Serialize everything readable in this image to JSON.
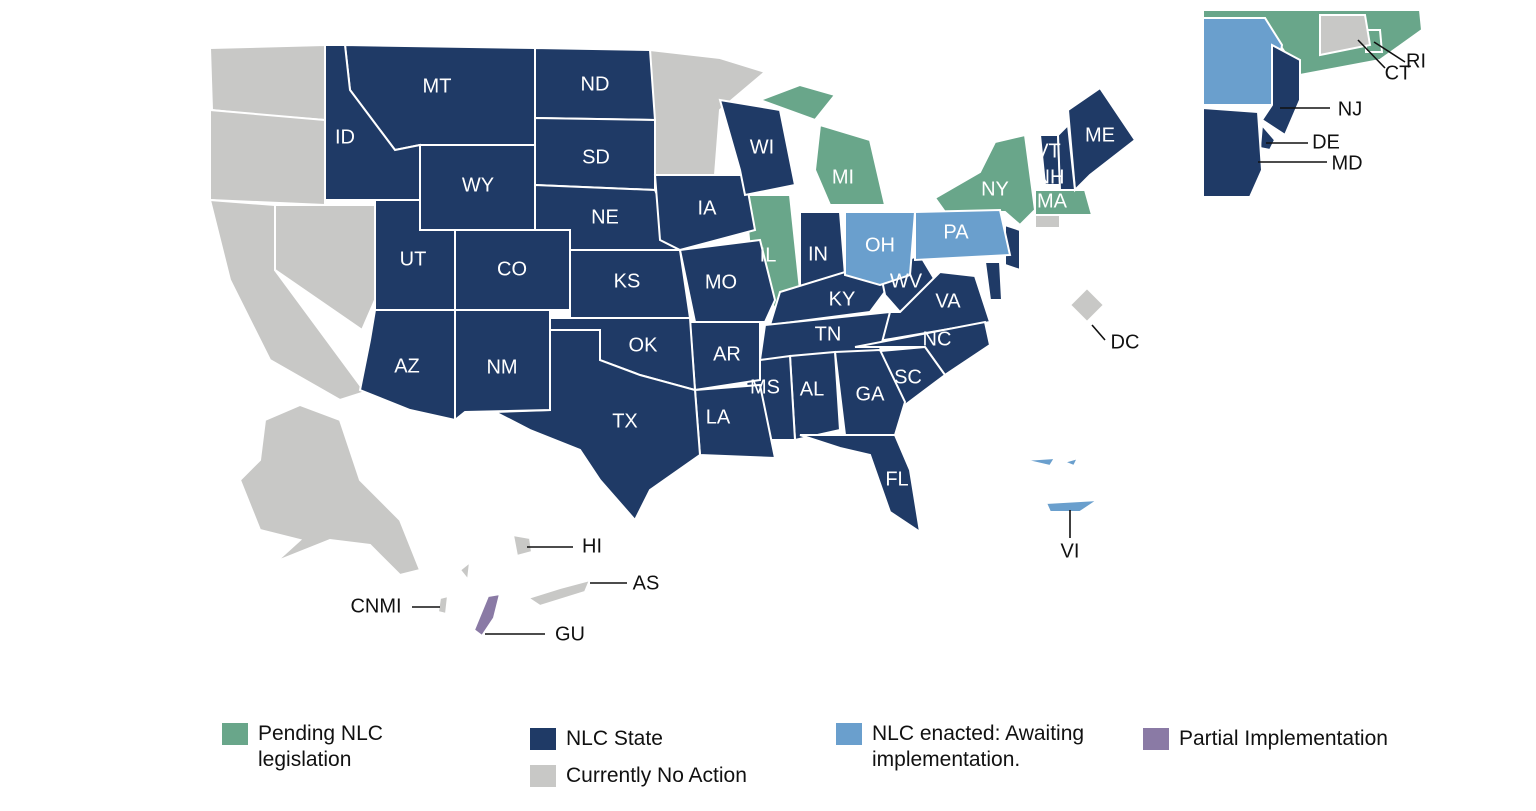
{
  "legend": [
    {
      "label": "Pending NLC legislation",
      "color": "#69a68a",
      "regions": [
        "IL",
        "MI",
        "NY",
        "MA",
        "RI"
      ]
    },
    {
      "label": "NLC State",
      "color": "#1f3a66",
      "regions": [
        "MT",
        "ND",
        "ID",
        "SD",
        "WY",
        "NE",
        "UT",
        "CO",
        "KS",
        "IA",
        "WI",
        "MO",
        "IN",
        "KY",
        "WV",
        "VA",
        "TN",
        "NC",
        "SC",
        "GA",
        "AL",
        "MS",
        "AR",
        "LA",
        "OK",
        "TX",
        "NM",
        "AZ",
        "FL",
        "ME",
        "VT",
        "NH",
        "NJ",
        "DE",
        "MD"
      ]
    },
    {
      "label": "Currently No Action",
      "color": "#c8c8c6",
      "regions": [
        "DC",
        "HI",
        "AS",
        "CNMI",
        "CT"
      ]
    },
    {
      "label": "NLC enacted: Awaiting implementation.",
      "color": "#6a9fcd",
      "regions": [
        "OH",
        "PA",
        "VI"
      ]
    },
    {
      "label": "Partial Implementation",
      "color": "#8a7aa5",
      "regions": [
        "GU"
      ]
    }
  ]
}
